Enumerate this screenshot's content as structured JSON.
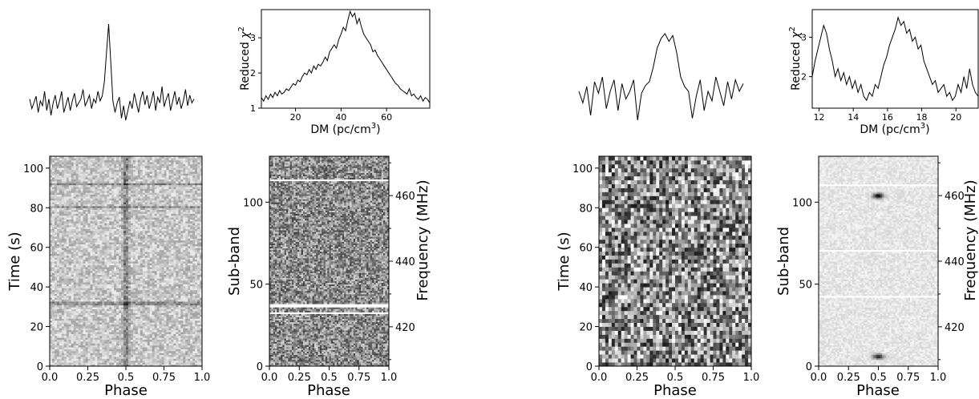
{
  "chart_data": [
    {
      "type": "line",
      "panel": "left-profile",
      "description_visible": "pulse profile, single sharp peak near phase 0.5",
      "series": [
        {
          "values": [
            0.22,
            0.12,
            0.18,
            0.25,
            0.08,
            0.2,
            0.15,
            0.3,
            0.1,
            0.22,
            0.05,
            0.18,
            0.26,
            0.12,
            0.2,
            0.3,
            0.08,
            0.16,
            0.24,
            0.1,
            0.2,
            0.28,
            0.14,
            0.18,
            0.22,
            0.32,
            0.15,
            0.2,
            0.26,
            0.12,
            0.22,
            0.18,
            0.3,
            0.2,
            0.25,
            0.4,
            0.7,
            1.0,
            0.6,
            0.2,
            0.08,
            0.18,
            0.24,
            0.02,
            0.15,
            0.0,
            0.1,
            0.2,
            0.12,
            0.28,
            0.18,
            0.08,
            0.22,
            0.3,
            0.16,
            0.26,
            0.12,
            0.2,
            0.3,
            0.1,
            0.24,
            0.18,
            0.35,
            0.14,
            0.22,
            0.28,
            0.1,
            0.2,
            0.3,
            0.16,
            0.24,
            0.12,
            0.2,
            0.32,
            0.15,
            0.26,
            0.18,
            0.22
          ]
        }
      ]
    },
    {
      "type": "line",
      "panel": "left-dm",
      "xlabel": "DM (pc/cm",
      "xlabel_sup": "3",
      "xlabel_end": ")",
      "ylabel": "Reduced ",
      "ylabel_chi": "χ",
      "ylabel_sup": "2",
      "xlim": [
        5,
        79
      ],
      "ylim": [
        1.0,
        3.8
      ],
      "xticks": [
        20,
        40,
        60
      ],
      "yticks": [
        1,
        2,
        3
      ],
      "series": [
        {
          "x_start": 5,
          "x_end": 79,
          "values": [
            1.3,
            1.2,
            1.35,
            1.25,
            1.4,
            1.3,
            1.45,
            1.35,
            1.5,
            1.4,
            1.45,
            1.55,
            1.5,
            1.6,
            1.7,
            1.65,
            1.8,
            1.75,
            1.9,
            2.0,
            1.95,
            2.1,
            2.0,
            2.2,
            2.1,
            2.25,
            2.2,
            2.3,
            2.45,
            2.35,
            2.6,
            2.7,
            2.8,
            2.7,
            2.95,
            3.1,
            3.3,
            3.2,
            3.5,
            3.75,
            3.6,
            3.7,
            3.4,
            3.55,
            3.3,
            3.1,
            3.0,
            2.9,
            2.8,
            2.6,
            2.65,
            2.5,
            2.4,
            2.3,
            2.2,
            2.1,
            2.0,
            1.9,
            1.8,
            1.7,
            1.65,
            1.55,
            1.5,
            1.45,
            1.4,
            1.55,
            1.35,
            1.4,
            1.3,
            1.25,
            1.35,
            1.2,
            1.3,
            1.25,
            1.15
          ]
        }
      ]
    },
    {
      "type": "heatmap",
      "panel": "left-time-phase",
      "xlabel": "Phase",
      "ylabel": "Time (s)",
      "xlim": [
        0.0,
        1.0
      ],
      "ylim": [
        0,
        106
      ],
      "xticks": [
        "0.0",
        "0.25",
        "0.5",
        "0.75",
        "1.0"
      ],
      "yticks": [
        0,
        20,
        40,
        60,
        80,
        100
      ],
      "features": "faint vertical streak at phase 0.5; dark horizontal bands near 32 s and 80 s",
      "base_gray": 0.78,
      "noise": 0.16,
      "dark_rows": [
        32,
        31,
        80,
        92
      ],
      "pulse_phase": 0.5,
      "pulse_strength": 0.35,
      "grid": [
        64,
        110
      ]
    },
    {
      "type": "heatmap",
      "panel": "left-subband-phase",
      "xlabel": "Phase",
      "ylabel": "Sub-band",
      "ylabel_right": "Frequency (MHz)",
      "xlim": [
        0.0,
        1.0
      ],
      "ylim": [
        0,
        128
      ],
      "xticks": [
        "0.0",
        "0.25",
        "0.5",
        "0.75",
        "1.0"
      ],
      "yticks": [
        0,
        50,
        100
      ],
      "yticks_right": [
        420,
        440,
        460
      ],
      "freq_range": [
        408,
        472
      ],
      "base_gray": 0.55,
      "noise": 0.3,
      "white_rows": [
        113,
        32,
        37,
        36
      ],
      "grid": [
        64,
        128
      ]
    },
    {
      "type": "line",
      "panel": "right-profile",
      "series": [
        {
          "values": [
            0.3,
            0.18,
            0.35,
            0.05,
            0.4,
            0.28,
            0.45,
            0.12,
            0.3,
            0.42,
            0.1,
            0.38,
            0.22,
            0.3,
            0.42,
            0.0,
            0.28,
            0.36,
            0.4,
            0.55,
            0.75,
            0.85,
            0.9,
            0.82,
            0.88,
            0.7,
            0.45,
            0.35,
            0.3,
            0.02,
            0.25,
            0.42,
            0.1,
            0.3,
            0.2,
            0.45,
            0.3,
            0.15,
            0.4,
            0.22,
            0.42,
            0.3,
            0.38
          ]
        }
      ]
    },
    {
      "type": "line",
      "panel": "right-dm",
      "xlabel": "DM (pc/cm",
      "xlabel_sup": "3",
      "xlabel_end": ")",
      "ylabel": "Reduced ",
      "ylabel_chi": "χ",
      "ylabel_sup": "2",
      "xlim": [
        11.6,
        21.3
      ],
      "ylim": [
        1.2,
        3.7
      ],
      "xticks": [
        12,
        14,
        16,
        18,
        20
      ],
      "yticks": [
        2,
        3
      ],
      "series": [
        {
          "x_start": 11.6,
          "x_end": 21.3,
          "values": [
            2.0,
            2.4,
            2.7,
            3.0,
            3.3,
            3.1,
            2.7,
            2.4,
            2.0,
            2.2,
            1.9,
            2.1,
            1.8,
            2.0,
            1.7,
            1.9,
            1.6,
            1.8,
            1.5,
            1.4,
            1.6,
            1.5,
            1.8,
            1.7,
            2.0,
            2.3,
            2.5,
            2.8,
            3.0,
            3.2,
            3.5,
            3.3,
            3.4,
            3.1,
            3.2,
            2.9,
            3.0,
            2.7,
            2.8,
            2.4,
            2.2,
            2.0,
            1.8,
            1.9,
            1.6,
            1.7,
            1.8,
            1.5,
            1.6,
            1.4,
            1.5,
            1.8,
            1.6,
            2.0,
            1.7,
            2.2,
            1.8,
            1.6,
            1.5
          ]
        }
      ]
    },
    {
      "type": "heatmap",
      "panel": "right-time-phase",
      "xlabel": "Phase",
      "ylabel": "Time (s)",
      "xlim": [
        0.0,
        1.0
      ],
      "ylim": [
        0,
        106
      ],
      "xticks": [
        "0.0",
        "0.25",
        "0.5",
        "0.75",
        "1.0"
      ],
      "yticks": [
        0,
        20,
        40,
        60,
        80,
        100
      ],
      "base_gray": 0.55,
      "noise": 0.45,
      "pulse_phase": 0.45,
      "pulse_strength": 0.1,
      "grid": [
        48,
        53
      ]
    },
    {
      "type": "heatmap",
      "panel": "right-subband-phase",
      "xlabel": "Phase",
      "ylabel": "Sub-band",
      "ylabel_right": "Frequency (MHz)",
      "xlim": [
        0.0,
        1.0
      ],
      "ylim": [
        0,
        128
      ],
      "xticks": [
        "0.0",
        "0.25",
        "0.5",
        "0.75",
        "1.0"
      ],
      "yticks": [
        0,
        50,
        100
      ],
      "yticks_right": [
        420,
        440,
        460
      ],
      "freq_range": [
        408,
        472
      ],
      "base_gray": 0.9,
      "noise": 0.07,
      "white_rows": [
        110,
        42,
        70
      ],
      "blobs": [
        {
          "phase": 0.5,
          "band": 104,
          "strength": 0.9
        },
        {
          "phase": 0.5,
          "band": 6,
          "strength": 0.8
        }
      ],
      "grid": [
        64,
        128
      ]
    }
  ]
}
